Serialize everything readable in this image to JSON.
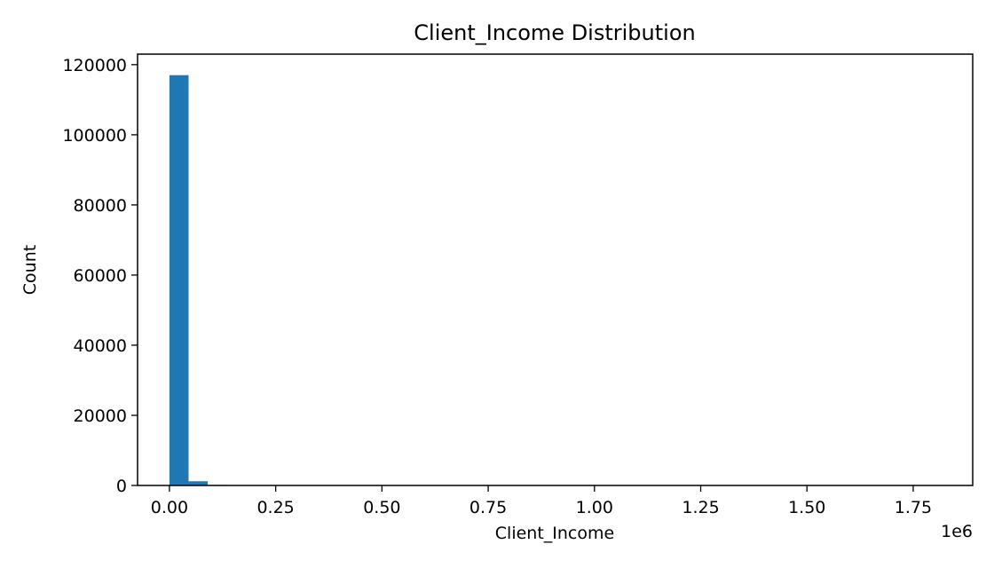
{
  "chart_data": {
    "type": "bar",
    "title": "Client_Income Distribution",
    "xlabel": "Client_Income",
    "ylabel": "Count",
    "x_offset_label": "1e6",
    "xlim": [
      -0.075,
      1.89
    ],
    "ylim": [
      0,
      123000
    ],
    "x_ticks": [
      0.0,
      0.25,
      0.5,
      0.75,
      1.0,
      1.25,
      1.5,
      1.75
    ],
    "x_tick_labels": [
      "0.00",
      "0.25",
      "0.50",
      "0.75",
      "1.00",
      "1.25",
      "1.50",
      "1.75"
    ],
    "y_ticks": [
      0,
      20000,
      40000,
      60000,
      80000,
      100000,
      120000
    ],
    "y_tick_labels": [
      "0",
      "20000",
      "40000",
      "60000",
      "80000",
      "100000",
      "120000"
    ],
    "bin_width": 0.045,
    "bin_starts": [
      0.0,
      0.045,
      0.09,
      0.135,
      0.18,
      0.225,
      0.27,
      0.315,
      0.36,
      0.405,
      0.45,
      0.495,
      0.54,
      0.585,
      0.63,
      0.675,
      0.72,
      0.765,
      0.81,
      0.855,
      0.9,
      0.945,
      0.99,
      1.035,
      1.08,
      1.125,
      1.17,
      1.215,
      1.26,
      1.305,
      1.35,
      1.395,
      1.44,
      1.485,
      1.53,
      1.575,
      1.62,
      1.665,
      1.71,
      1.755
    ],
    "values": [
      117000,
      1200,
      150,
      60,
      30,
      20,
      15,
      10,
      8,
      6,
      5,
      4,
      3,
      3,
      2,
      2,
      2,
      1,
      1,
      1,
      1,
      1,
      1,
      1,
      1,
      1,
      1,
      1,
      1,
      1,
      1,
      1,
      1,
      1,
      1,
      1,
      1,
      1,
      1,
      1
    ],
    "bar_color": "#1f77b4",
    "grid": false,
    "legend": "none"
  }
}
